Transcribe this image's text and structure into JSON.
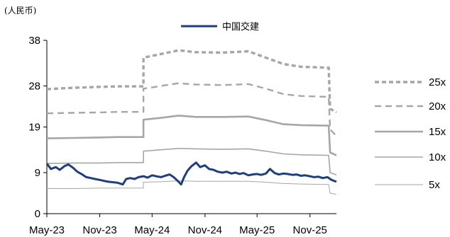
{
  "unit_label": "(人民币)",
  "chart_data": {
    "type": "line",
    "xlabel": "",
    "ylabel": "",
    "ylim": [
      0,
      38
    ],
    "yticks": [
      "0",
      "9",
      "19",
      "28",
      "38"
    ],
    "xticks": [
      "May-23",
      "Nov-23",
      "May-24",
      "Nov-24",
      "May-25",
      "Nov-25"
    ],
    "x_range": [
      "2023-05",
      "2026-02"
    ],
    "grid": false,
    "legend": "right",
    "series": [
      {
        "name": "中国交建",
        "style": "solid",
        "color": "#1F3E7C",
        "points": [
          [
            "2023-05",
            11.0
          ],
          [
            "2023-05-15",
            9.8
          ],
          [
            "2023-06",
            10.2
          ],
          [
            "2023-06-15",
            9.6
          ],
          [
            "2023-07",
            10.4
          ],
          [
            "2023-07-15",
            10.8
          ],
          [
            "2023-08",
            10.0
          ],
          [
            "2023-08-15",
            9.2
          ],
          [
            "2023-09",
            8.6
          ],
          [
            "2023-09-15",
            8.0
          ],
          [
            "2023-10",
            7.8
          ],
          [
            "2023-10-15",
            7.6
          ],
          [
            "2023-11",
            7.4
          ],
          [
            "2023-11-15",
            7.2
          ],
          [
            "2023-12",
            7.0
          ],
          [
            "2023-12-15",
            6.9
          ],
          [
            "2024-01",
            6.8
          ],
          [
            "2024-01-20",
            6.4
          ],
          [
            "2024-02",
            7.6
          ],
          [
            "2024-02-15",
            7.8
          ],
          [
            "2024-03",
            7.6
          ],
          [
            "2024-03-15",
            8.0
          ],
          [
            "2024-04",
            8.2
          ],
          [
            "2024-04-15",
            7.9
          ],
          [
            "2024-05",
            8.4
          ],
          [
            "2024-05-15",
            8.2
          ],
          [
            "2024-06",
            8.0
          ],
          [
            "2024-06-15",
            8.3
          ],
          [
            "2024-07",
            8.6
          ],
          [
            "2024-07-15",
            8.0
          ],
          [
            "2024-08",
            7.0
          ],
          [
            "2024-08-10",
            6.4
          ],
          [
            "2024-08-20",
            8.0
          ],
          [
            "2024-09",
            9.4
          ],
          [
            "2024-09-15",
            10.4
          ],
          [
            "2024-10",
            11.2
          ],
          [
            "2024-10-15",
            10.2
          ],
          [
            "2024-11",
            10.6
          ],
          [
            "2024-11-15",
            9.8
          ],
          [
            "2024-12",
            9.6
          ],
          [
            "2024-12-15",
            9.2
          ],
          [
            "2025-01",
            9.0
          ],
          [
            "2025-01-15",
            9.2
          ],
          [
            "2025-02",
            8.8
          ],
          [
            "2025-02-15",
            9.0
          ],
          [
            "2025-03",
            8.7
          ],
          [
            "2025-03-15",
            8.9
          ],
          [
            "2025-04",
            8.4
          ],
          [
            "2025-04-15",
            8.6
          ],
          [
            "2025-05",
            8.7
          ],
          [
            "2025-05-15",
            8.5
          ],
          [
            "2025-06",
            8.8
          ],
          [
            "2025-06-15",
            9.8
          ],
          [
            "2025-07",
            8.9
          ],
          [
            "2025-07-15",
            8.6
          ],
          [
            "2025-08",
            8.8
          ],
          [
            "2025-08-15",
            8.7
          ],
          [
            "2025-09",
            8.5
          ],
          [
            "2025-09-15",
            8.6
          ],
          [
            "2025-10",
            8.3
          ],
          [
            "2025-10-15",
            8.4
          ],
          [
            "2025-11",
            8.2
          ],
          [
            "2025-11-15",
            8.0
          ],
          [
            "2025-12",
            8.1
          ],
          [
            "2025-12-15",
            7.8
          ],
          [
            "2026-01",
            8.0
          ],
          [
            "2026-01-15",
            7.4
          ],
          [
            "2026-02",
            7.0
          ]
        ]
      },
      {
        "name": "25x",
        "style": "dashed-bold",
        "color": "#A6A6A6",
        "points": [
          [
            "2023-05",
            27.3
          ],
          [
            "2023-08",
            27.6
          ],
          [
            "2023-11",
            27.8
          ],
          [
            "2024-01",
            27.9
          ],
          [
            "2024-04",
            27.9
          ],
          [
            "2024-04",
            34.2
          ],
          [
            "2024-06",
            35.0
          ],
          [
            "2024-08",
            35.8
          ],
          [
            "2024-10",
            35.4
          ],
          [
            "2025-01",
            35.3
          ],
          [
            "2025-04",
            35.6
          ],
          [
            "2025-06",
            34.2
          ],
          [
            "2025-08",
            32.8
          ],
          [
            "2025-10",
            32.2
          ],
          [
            "2026-01",
            32.0
          ],
          [
            "2026-01-05",
            32.0
          ],
          [
            "2026-01-10",
            23.0
          ],
          [
            "2026-02",
            22.2
          ]
        ]
      },
      {
        "name": "20x",
        "style": "dashed",
        "color": "#A6A6A6",
        "points": [
          [
            "2023-05",
            22.0
          ],
          [
            "2023-08",
            22.1
          ],
          [
            "2023-11",
            22.2
          ],
          [
            "2024-01",
            22.3
          ],
          [
            "2024-04",
            22.3
          ],
          [
            "2024-04",
            27.4
          ],
          [
            "2024-06",
            28.0
          ],
          [
            "2024-08",
            28.6
          ],
          [
            "2024-10",
            28.3
          ],
          [
            "2025-01",
            28.2
          ],
          [
            "2025-04",
            28.4
          ],
          [
            "2025-06",
            27.4
          ],
          [
            "2025-08",
            26.2
          ],
          [
            "2025-10",
            25.8
          ],
          [
            "2026-01",
            25.6
          ],
          [
            "2026-01-05",
            25.6
          ],
          [
            "2026-01-10",
            18.5
          ],
          [
            "2026-02",
            17.0
          ]
        ]
      },
      {
        "name": "15x",
        "style": "solid-bold",
        "color": "#A6A6A6",
        "points": [
          [
            "2023-05",
            16.5
          ],
          [
            "2023-08",
            16.6
          ],
          [
            "2023-11",
            16.7
          ],
          [
            "2024-01",
            16.8
          ],
          [
            "2024-04",
            16.8
          ],
          [
            "2024-04",
            20.6
          ],
          [
            "2024-06",
            21.0
          ],
          [
            "2024-08",
            21.5
          ],
          [
            "2024-10",
            21.2
          ],
          [
            "2025-01",
            21.2
          ],
          [
            "2025-04",
            21.3
          ],
          [
            "2025-06",
            20.5
          ],
          [
            "2025-08",
            19.6
          ],
          [
            "2025-10",
            19.4
          ],
          [
            "2026-01",
            19.3
          ],
          [
            "2026-01-05",
            19.3
          ],
          [
            "2026-01-10",
            13.4
          ],
          [
            "2026-02",
            12.8
          ]
        ]
      },
      {
        "name": "10x",
        "style": "solid",
        "color": "#A6A6A6",
        "points": [
          [
            "2023-05",
            11.0
          ],
          [
            "2023-08",
            11.1
          ],
          [
            "2023-11",
            11.1
          ],
          [
            "2024-01",
            11.2
          ],
          [
            "2024-04",
            11.2
          ],
          [
            "2024-04",
            13.7
          ],
          [
            "2024-06",
            14.0
          ],
          [
            "2024-08",
            14.3
          ],
          [
            "2024-10",
            14.2
          ],
          [
            "2025-01",
            14.1
          ],
          [
            "2025-04",
            14.2
          ],
          [
            "2025-06",
            13.7
          ],
          [
            "2025-08",
            13.1
          ],
          [
            "2025-10",
            12.9
          ],
          [
            "2026-01",
            12.8
          ],
          [
            "2026-01-05",
            12.8
          ],
          [
            "2026-01-10",
            9.0
          ],
          [
            "2026-02",
            8.5
          ]
        ]
      },
      {
        "name": "5x",
        "style": "solid-thin",
        "color": "#A6A6A6",
        "points": [
          [
            "2023-05",
            5.5
          ],
          [
            "2023-08",
            5.5
          ],
          [
            "2023-11",
            5.6
          ],
          [
            "2024-01",
            5.6
          ],
          [
            "2024-04",
            5.6
          ],
          [
            "2024-04",
            6.9
          ],
          [
            "2024-06",
            7.0
          ],
          [
            "2024-08",
            7.2
          ],
          [
            "2024-10",
            7.1
          ],
          [
            "2025-01",
            7.1
          ],
          [
            "2025-04",
            7.1
          ],
          [
            "2025-06",
            6.9
          ],
          [
            "2025-08",
            6.6
          ],
          [
            "2025-10",
            6.5
          ],
          [
            "2026-01",
            6.4
          ],
          [
            "2026-01-05",
            6.4
          ],
          [
            "2026-01-10",
            4.5
          ],
          [
            "2026-02",
            4.2
          ]
        ]
      }
    ]
  }
}
